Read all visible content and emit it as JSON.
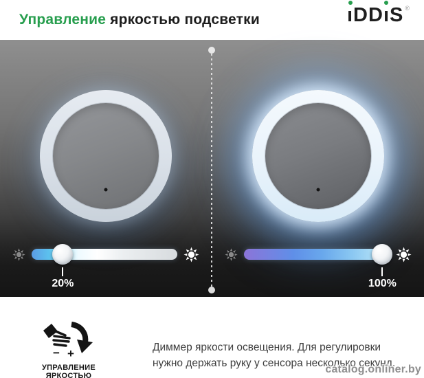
{
  "colors": {
    "accent_green": "#279E4E",
    "heading_text": "#1D1D1D",
    "wall_top": "#8F8F8F",
    "wall_bottom": "#151515",
    "slider_dim_gradient": [
      "#5B9BE4",
      "#5CC2EE",
      "#FFFFFF",
      "#D7DBDE"
    ],
    "slider_bright_gradient": [
      "#8B74D8",
      "#5F8FE8",
      "#BFE7F8"
    ],
    "halo_blue": "#7DAFE6",
    "value_text": "#FFFFFF",
    "watermark_gray": "#8F8F8F"
  },
  "header": {
    "title_accent": "Управление",
    "title_rest": " яркостью подсветки",
    "logo": {
      "l1": "ı",
      "l2": "D",
      "l3": "D",
      "l4": "ı",
      "l5": "S",
      "registered": "®"
    }
  },
  "panels": [
    {
      "name": "dim",
      "value": 20,
      "value_label": "20%"
    },
    {
      "name": "bright",
      "value": 100,
      "value_label": "100%"
    }
  ],
  "icons": {
    "sun_dim": "sun-dim-icon",
    "sun_bright": "sun-bright-icon",
    "gesture": "hand-dimmer-gesture-icon",
    "sensor": "touch-sensor-dot"
  },
  "footer": {
    "gesture_minus": "−",
    "gesture_plus": "+",
    "gesture_label_line1": "УПРАВЛЕНИЕ",
    "gesture_label_line2": "ЯРКОСТЬЮ",
    "description": "Диммер яркости освещения. Для регулировки нужно держать руку у сенсора несколько секунд.",
    "watermark": "catalog.onliner.by"
  }
}
